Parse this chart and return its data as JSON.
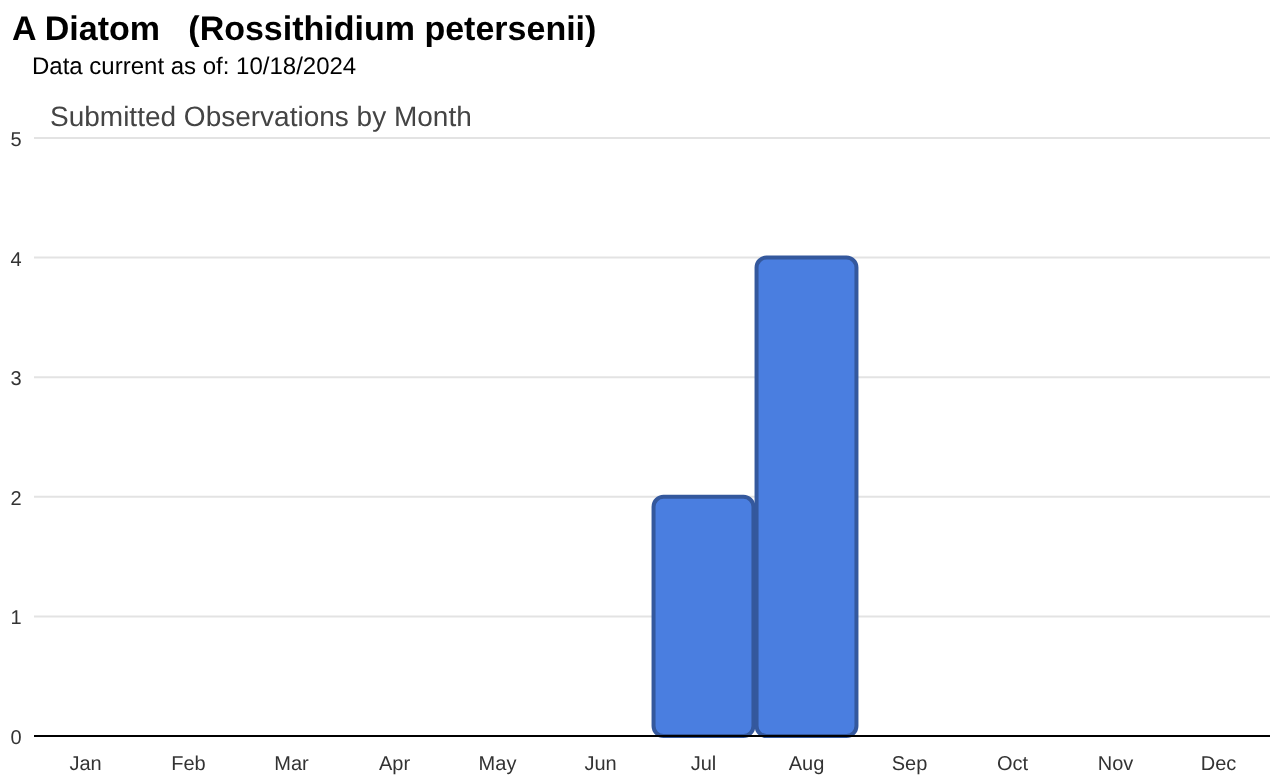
{
  "chart_data": {
    "type": "bar",
    "title": "A Diatom   (Rossithidium petersenii)",
    "subtitle": "Data current as of: 10/18/2024",
    "annotations": [
      "Submitted Observations by Month"
    ],
    "categories": [
      "Jan",
      "Feb",
      "Mar",
      "Apr",
      "May",
      "Jun",
      "Jul",
      "Aug",
      "Sep",
      "Oct",
      "Nov",
      "Dec"
    ],
    "values": [
      0,
      0,
      0,
      0,
      0,
      0,
      2,
      4,
      0,
      0,
      0,
      0
    ],
    "color": "#4a7ee0",
    "ylim": [
      0,
      5
    ],
    "yticks": [
      0,
      1,
      2,
      3,
      4,
      5
    ],
    "grid": "y"
  }
}
